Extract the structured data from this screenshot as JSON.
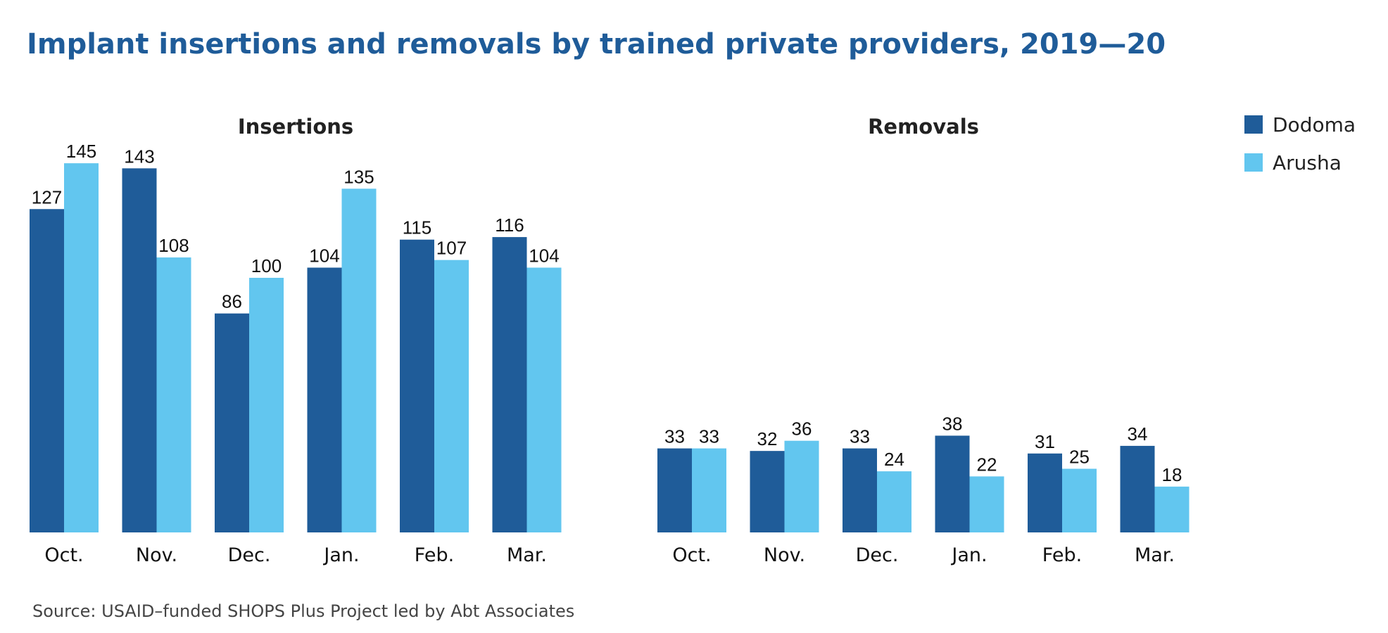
{
  "title": "Implant insertions and removals by trained private providers, 2019—20",
  "source": "Source: USAID–funded SHOPS Plus Project led by Abt Associates",
  "legend": {
    "position": "top-right",
    "items": [
      {
        "label": "Dodoma",
        "color": "#1f5c99"
      },
      {
        "label": "Arusha",
        "color": "#62c6ef"
      }
    ]
  },
  "chart_data": [
    {
      "type": "bar",
      "title": "Insertions",
      "categories": [
        "Oct.",
        "Nov.",
        "Dec.",
        "Jan.",
        "Feb.",
        "Mar."
      ],
      "series": [
        {
          "name": "Dodoma",
          "values": [
            127,
            143,
            86,
            104,
            115,
            116
          ]
        },
        {
          "name": "Arusha",
          "values": [
            145,
            108,
            100,
            135,
            107,
            104
          ]
        }
      ],
      "ylim": [
        0,
        150
      ],
      "grid": false,
      "data_labels": true
    },
    {
      "type": "bar",
      "title": "Removals",
      "categories": [
        "Oct.",
        "Nov.",
        "Dec.",
        "Jan.",
        "Feb.",
        "Mar."
      ],
      "series": [
        {
          "name": "Dodoma",
          "values": [
            33,
            32,
            33,
            38,
            31,
            34
          ]
        },
        {
          "name": "Arusha",
          "values": [
            33,
            36,
            24,
            22,
            25,
            18
          ]
        }
      ],
      "ylim": [
        0,
        150
      ],
      "grid": false,
      "data_labels": true
    }
  ]
}
